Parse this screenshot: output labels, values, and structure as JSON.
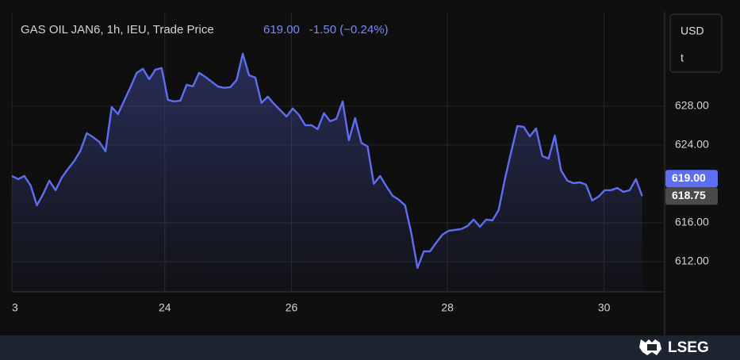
{
  "chart_data": {
    "type": "area-line",
    "title": "GAS OIL JAN6, 1h, IEU, Trade Price",
    "last_price": "619.00",
    "change": "-1.50 (−0.24%)",
    "currency": "USD",
    "unit": "t",
    "brand": "LSEG",
    "color": "#5e6ef2",
    "grid": true,
    "values": [
      620.82,
      620.49,
      620.82,
      619.84,
      617.8,
      618.94,
      620.33,
      619.35,
      620.65,
      621.55,
      622.37,
      623.43,
      625.22,
      624.82,
      624.33,
      623.35,
      627.92,
      627.18,
      628.57,
      629.96,
      631.43,
      631.84,
      630.78,
      631.76,
      631.92,
      628.65,
      628.49,
      628.57,
      630.2,
      630.04,
      631.43,
      631.02,
      630.53,
      630.04,
      629.88,
      629.96,
      630.69,
      633.39,
      631.18,
      630.94,
      628.33,
      628.98,
      628.24,
      627.59,
      626.94,
      627.76,
      627.1,
      626.04,
      626.04,
      625.63,
      627.27,
      626.45,
      626.69,
      628.49,
      624.49,
      626.78,
      624.24,
      623.84,
      620.0,
      620.82,
      619.76,
      618.78,
      618.37,
      617.8,
      614.94,
      611.35,
      613.06,
      613.06,
      613.96,
      614.78,
      615.18,
      615.27,
      615.35,
      615.67,
      616.33,
      615.59,
      616.33,
      616.24,
      617.31,
      620.49,
      623.27,
      625.96,
      625.88,
      624.9,
      625.71,
      622.86,
      622.61,
      624.98,
      621.39,
      620.33,
      620.08,
      620.16,
      619.92,
      618.29,
      618.69,
      619.35,
      619.35,
      619.59,
      619.18,
      619.35,
      620.49,
      618.75
    ],
    "xlim": [
      0,
      104.6
    ],
    "xticks": [
      {
        "value": 0,
        "label": "3"
      },
      {
        "value": 24.5,
        "label": "24"
      },
      {
        "value": 44.8,
        "label": "26"
      },
      {
        "value": 69.8,
        "label": "28"
      },
      {
        "value": 94.9,
        "label": "30"
      }
    ],
    "ylim": [
      608.9,
      637.7
    ],
    "yticks": [
      {
        "value": 612,
        "label": "612.00"
      },
      {
        "value": 616,
        "label": "616.00"
      },
      {
        "value": 624,
        "label": "624.00"
      },
      {
        "value": 628,
        "label": "628.00"
      }
    ],
    "price_labels": [
      {
        "value": 619,
        "label": "619.00",
        "color": "#5e6ef2"
      },
      {
        "value": 618.75,
        "label": "618.75",
        "color": "#4a4a4a"
      }
    ]
  }
}
